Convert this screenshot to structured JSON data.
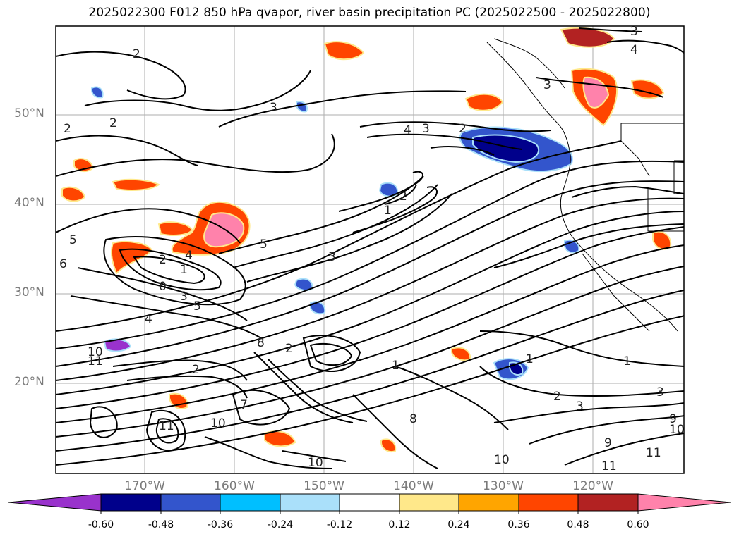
{
  "title": "2025022300 F012 850 hPa qvapor, river basin precipitation PC (2025022500 - 2025022800)",
  "latitude_labels": [
    "50°N",
    "40°N",
    "30°N",
    "20°N"
  ],
  "longitude_labels": [
    "170°W",
    "160°W",
    "150°W",
    "140°W",
    "130°W",
    "120°W"
  ],
  "colorbar": {
    "colors": [
      "#9932cc",
      "#00008b",
      "#3355cc",
      "#00bfff",
      "#aae0fa",
      "#ffffff",
      "#ffe88a",
      "#ffa500",
      "#ff4500",
      "#b22222",
      "#ff82ab"
    ],
    "tick_labels": [
      "-0.60",
      "-0.48",
      "-0.36",
      "-0.24",
      "-0.12",
      "0.12",
      "0.24",
      "0.36",
      "0.48",
      "0.60"
    ]
  },
  "contour_labels": [
    "2",
    "2",
    "3",
    "2",
    "4",
    "3",
    "2",
    "3",
    "4",
    "3",
    "5",
    "4",
    "2",
    "1",
    "0",
    "3",
    "5",
    "4",
    "1",
    "2",
    "3",
    "5",
    "6",
    "8",
    "10",
    "11",
    "2",
    "1",
    "2",
    "3",
    "1",
    "1",
    "2",
    "3",
    "9",
    "10",
    "10",
    "11",
    "11",
    "10",
    "9",
    "8",
    "7",
    "10",
    "11"
  ]
}
